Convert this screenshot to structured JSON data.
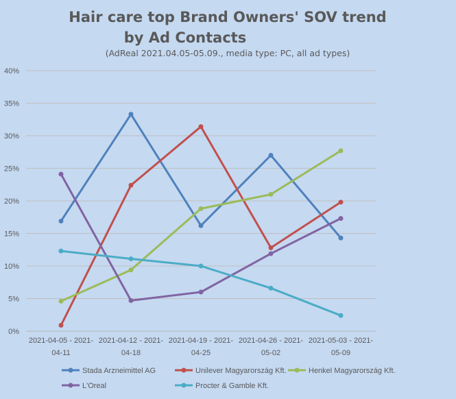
{
  "chart_data": {
    "type": "line",
    "title_line1": "Hair care top Brand Owners' SOV trend",
    "title_line2": "by Ad Contacts",
    "subtitle": "(AdReal 2021.04.05-05.09.,  media type: PC, all ad types)",
    "xlabel": "",
    "ylabel": "",
    "categories": [
      [
        "2021-04-05 - 2021-",
        "04-11"
      ],
      [
        "2021-04-12 - 2021-",
        "04-18"
      ],
      [
        "2021-04-19 - 2021-",
        "04-25"
      ],
      [
        "2021-04-26 - 2021-",
        "05-02"
      ],
      [
        "2021-05-03 - 2021-",
        "05-09"
      ]
    ],
    "ylim": [
      0,
      0.4
    ],
    "yticks": [
      "0%",
      "5%",
      "10%",
      "15%",
      "20%",
      "25%",
      "30%",
      "35%",
      "40%"
    ],
    "grid": "horizontal",
    "legend_position": "bottom",
    "series": [
      {
        "name": "Stada Arzneimittel AG",
        "color": "#4f81bd",
        "values": [
          0.169,
          0.333,
          0.162,
          0.27,
          0.143
        ]
      },
      {
        "name": "Unilever Magyarország Kft.",
        "color": "#c0504d",
        "values": [
          0.009,
          0.224,
          0.314,
          0.128,
          0.198
        ]
      },
      {
        "name": "Henkel Magyarország Kft.",
        "color": "#9bbb59",
        "values": [
          0.046,
          0.094,
          0.188,
          0.21,
          0.277
        ]
      },
      {
        "name": "L'Oreal",
        "color": "#8064a2",
        "values": [
          0.241,
          0.047,
          0.06,
          0.119,
          0.173
        ]
      },
      {
        "name": "Procter & Gamble Kft.",
        "color": "#4bacc6",
        "values": [
          0.123,
          0.111,
          0.1,
          0.066,
          0.024
        ]
      }
    ]
  }
}
